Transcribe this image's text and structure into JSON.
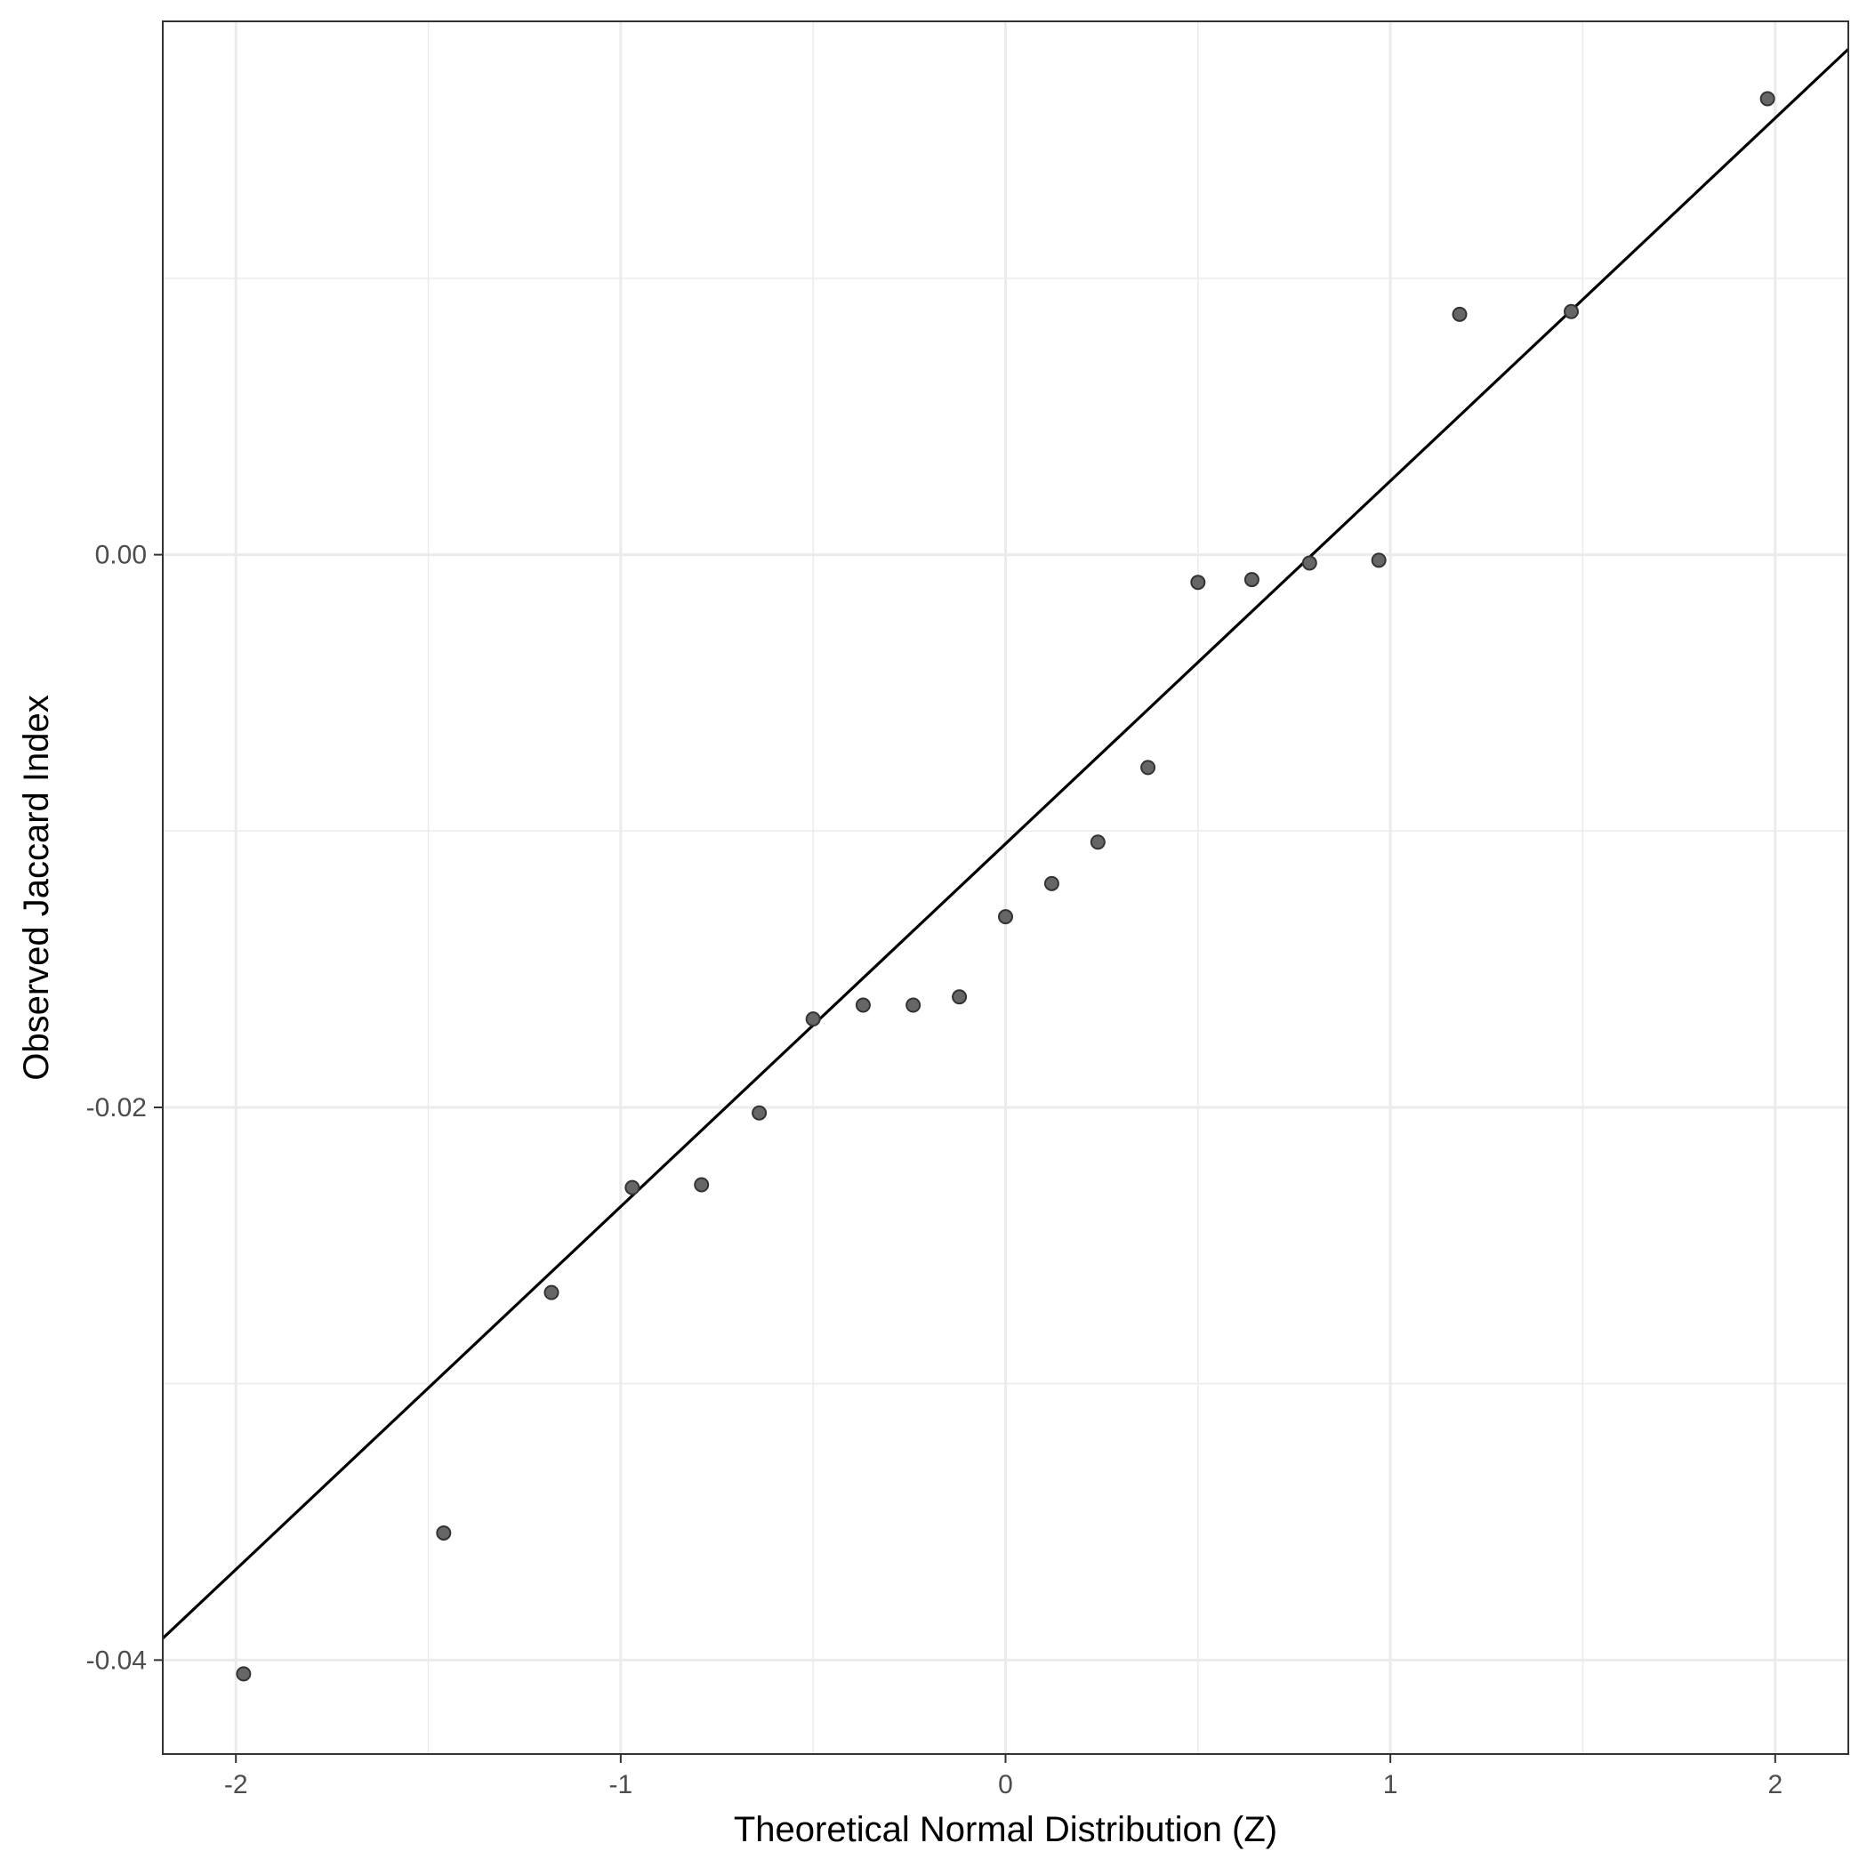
{
  "chart_data": {
    "type": "scatter",
    "title": "",
    "xlabel": "Theoretical Normal Distribution (Z)",
    "ylabel": "Observed Jaccard Index",
    "xlim": [
      -2.19,
      2.19
    ],
    "ylim": [
      -0.0434,
      0.0193
    ],
    "x_ticks": [
      -2,
      -1,
      0,
      1,
      2
    ],
    "x_tick_labels": [
      "-2",
      "-1",
      "0",
      "1",
      "2"
    ],
    "y_ticks": [
      -0.04,
      -0.02,
      0.0
    ],
    "y_tick_labels": [
      "-0.04",
      "-0.02",
      "0.00"
    ],
    "x_minor_ticks": [
      -1.5,
      -0.5,
      0.5,
      1.5
    ],
    "y_minor_ticks": [
      -0.03,
      -0.01,
      0.01
    ],
    "grid": true,
    "legend": "none",
    "points": [
      {
        "x": -1.98,
        "y": -0.0405
      },
      {
        "x": -1.46,
        "y": -0.0354
      },
      {
        "x": -1.18,
        "y": -0.0267
      },
      {
        "x": -0.97,
        "y": -0.0229
      },
      {
        "x": -0.79,
        "y": -0.0228
      },
      {
        "x": -0.64,
        "y": -0.0202
      },
      {
        "x": -0.5,
        "y": -0.0168
      },
      {
        "x": -0.37,
        "y": -0.0163
      },
      {
        "x": -0.24,
        "y": -0.0163
      },
      {
        "x": -0.12,
        "y": -0.016
      },
      {
        "x": 0.0,
        "y": -0.0131
      },
      {
        "x": 0.12,
        "y": -0.0119
      },
      {
        "x": 0.24,
        "y": -0.0104
      },
      {
        "x": 0.37,
        "y": -0.0077
      },
      {
        "x": 0.5,
        "y": -0.001
      },
      {
        "x": 0.64,
        "y": -0.0009
      },
      {
        "x": 0.79,
        "y": -0.0003
      },
      {
        "x": 0.97,
        "y": -0.0002
      },
      {
        "x": 1.18,
        "y": 0.0087
      },
      {
        "x": 1.47,
        "y": 0.0088
      },
      {
        "x": 1.98,
        "y": 0.0165
      }
    ],
    "reference_line": {
      "slope": 0.01313,
      "intercept": -0.01046
    },
    "colors": {
      "point_fill": "#666666",
      "point_stroke": "#333333",
      "line": "#000000",
      "grid": "#ebebeb",
      "panel_border": "#333333",
      "tick_label": "#4d4d4d"
    }
  }
}
